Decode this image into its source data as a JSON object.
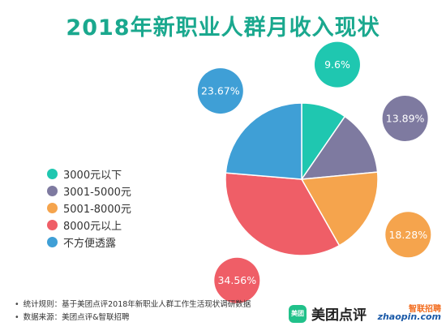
{
  "title": "2018年新职业人群月收入现状",
  "colors": {
    "title": "#1aa88e",
    "label_text": "#ffffff",
    "slice_border": "#ffffff"
  },
  "chart_data": {
    "type": "pie",
    "title": "2018年新职业人群月收入现状",
    "unit": "%",
    "start_angle_deg": 0,
    "direction": "clockwise",
    "legend_position": "left",
    "slices": [
      {
        "name": "3000元以下",
        "value": 9.6,
        "label": "9.6%",
        "color": "#1fc7b0"
      },
      {
        "name": "3001-5000元",
        "value": 13.89,
        "label": "13.89%",
        "color": "#7e7aa0"
      },
      {
        "name": "5001-8000元",
        "value": 18.28,
        "label": "18.28%",
        "color": "#f5a44d"
      },
      {
        "name": "8000元以上",
        "value": 34.56,
        "label": "34.56%",
        "color": "#ef5e67"
      },
      {
        "name": "不方便透露",
        "value": 23.67,
        "label": "23.67%",
        "color": "#3f9fd6"
      }
    ]
  },
  "notes": [
    "统计规则：基于美团点评2018年新职业人群工作生活现状调研数据",
    "数据来源：美团点评&智联招聘"
  ],
  "brands": {
    "meituan_badge": "美团",
    "meituan_name": "美团点评",
    "zhaopin_top": "智联招聘",
    "zhaopin_bottom": "zhaopin.com"
  }
}
